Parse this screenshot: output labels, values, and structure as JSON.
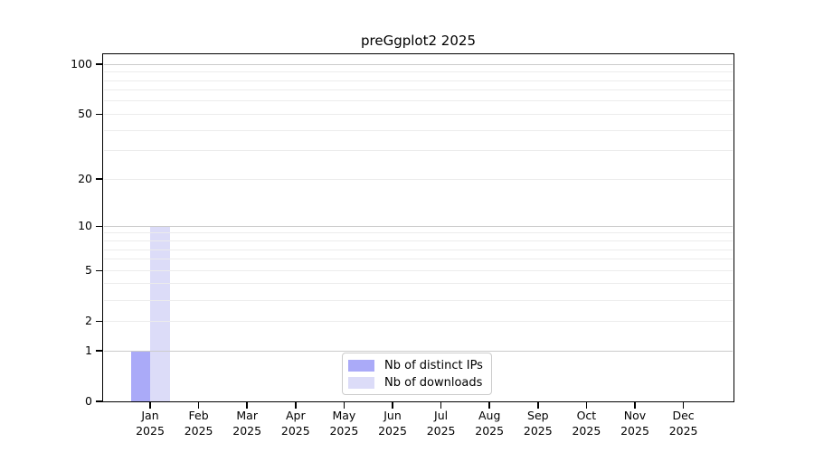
{
  "chart_data": {
    "type": "bar",
    "title": "preGgplot2 2025",
    "categories": [
      "Jan",
      "Feb",
      "Mar",
      "Apr",
      "May",
      "Jun",
      "Jul",
      "Aug",
      "Sep",
      "Oct",
      "Nov",
      "Dec"
    ],
    "category_year": "2025",
    "series": [
      {
        "name": "Nb of distinct IPs",
        "color": "#aaaaf8",
        "values": [
          1,
          0,
          0,
          0,
          0,
          0,
          0,
          0,
          0,
          0,
          0,
          0
        ]
      },
      {
        "name": "Nb of downloads",
        "color": "#dcdcf8",
        "values": [
          10,
          0,
          0,
          0,
          0,
          0,
          0,
          0,
          0,
          0,
          0,
          0
        ]
      }
    ],
    "y_scale": "log1p",
    "ylim": [
      0,
      115
    ],
    "y_ticks": [
      0,
      1,
      2,
      5,
      10,
      20,
      50,
      100
    ],
    "y_major_gridlines": [
      1,
      10,
      100
    ],
    "y_minor_gridlines": [
      2,
      3,
      4,
      5,
      6,
      7,
      8,
      9,
      20,
      30,
      40,
      50,
      60,
      70,
      80,
      90
    ],
    "grid": true,
    "legend_position": "bottom-center-inside"
  },
  "legend": {
    "items": [
      {
        "label": "Nb of distinct IPs",
        "color": "#aaaaf8"
      },
      {
        "label": "Nb of downloads",
        "color": "#dcdcf8"
      }
    ]
  },
  "colors": {
    "bar_distinct_ips": "#aaaaf8",
    "bar_downloads": "#dcdcf8",
    "grid_major": "#cbcbcb",
    "grid_minor": "#ececec",
    "axis": "#000000",
    "legend_border": "#cccccc",
    "text": "#000000"
  }
}
